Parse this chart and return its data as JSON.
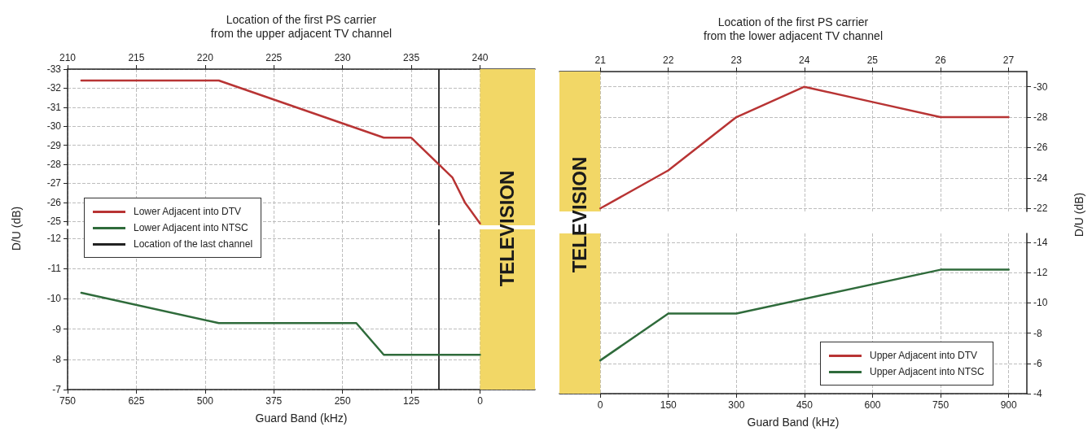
{
  "chart_data": [
    {
      "type": "line",
      "xlabel": "Location of the first PS carrier\nfrom the upper adjacent TV channel",
      "ylabel": "D/U (dB)",
      "xlim": [
        210,
        244
      ],
      "xticks": [
        210,
        215,
        220,
        225,
        230,
        235,
        240
      ],
      "ylim": [
        -24.8,
        -33
      ],
      "yticks": [
        -33,
        -32,
        -31,
        -30,
        -29,
        -28,
        -27,
        -26,
        -25
      ],
      "series": [
        {
          "name": "Lower Adjacent into DTV",
          "color": "#b83434",
          "x": [
            211,
            221,
            233,
            235,
            238,
            238.9,
            240
          ],
          "values": [
            -32.4,
            -32.4,
            -29.4,
            -29.4,
            -27.3,
            -26,
            -24.9
          ]
        }
      ],
      "ref_lines": [
        {
          "axis": "x",
          "value": 237,
          "label": "Location of the last channel",
          "color": "#222222"
        }
      ],
      "bands": [
        {
          "axis": "x",
          "from": 240,
          "to": 244,
          "label": "TELEVISION",
          "color": "#f2d766"
        }
      ],
      "grid": true,
      "legend": "bottom left"
    },
    {
      "type": "line",
      "xlabel": "Guard Band (kHz)",
      "xlim": [
        750,
        -100
      ],
      "xticks": [
        750,
        625,
        500,
        375,
        250,
        125,
        0
      ],
      "ylim": [
        -7,
        -12.3
      ],
      "yticks": [
        -12,
        -11,
        -10,
        -9,
        -8,
        -7
      ],
      "series": [
        {
          "name": "Lower Adjacent into NTSC",
          "color": "#2f6b3b",
          "x": [
            725,
            475,
            225,
            175,
            0
          ],
          "values": [
            -10.2,
            -9.2,
            -9.2,
            -8.15,
            -8.15
          ]
        }
      ],
      "ref_lines": [
        {
          "axis": "x",
          "value": 75,
          "color": "#222222"
        }
      ],
      "bands": [
        {
          "axis": "x",
          "from": 0,
          "to": -100,
          "color": "#f2d766"
        }
      ],
      "grid": true,
      "legend": "top left"
    },
    {
      "type": "line",
      "xlabel": "Location of the first PS carrier\nfrom the lower adjacent TV channel",
      "ylabel": "D/U (dB)",
      "xlim": [
        20.4,
        27.27
      ],
      "xticks": [
        21,
        22,
        23,
        24,
        25,
        26,
        27
      ],
      "ylim": [
        -21.8,
        -31
      ],
      "yticks": [
        -30,
        -28,
        -26,
        -24,
        -22
      ],
      "series": [
        {
          "name": "Upper Adjacent into DTV",
          "color": "#b83434",
          "x": [
            21,
            22,
            23,
            24,
            25,
            26,
            27
          ],
          "values": [
            -22,
            -24.5,
            -28,
            -30,
            -29,
            -28,
            -28
          ]
        }
      ],
      "bands": [
        {
          "axis": "x",
          "from": 20.4,
          "to": 21,
          "label": "TELEVISION",
          "color": "#f2d766"
        }
      ],
      "grid": true,
      "legend": "bottom right"
    },
    {
      "type": "line",
      "xlabel": "Guard Band (kHz)",
      "xlim": [
        -90,
        940
      ],
      "xticks": [
        0,
        150,
        300,
        450,
        600,
        750,
        900
      ],
      "ylim": [
        -4,
        -14.6
      ],
      "yticks": [
        -14,
        -12,
        -10,
        -8,
        -6,
        -4
      ],
      "series": [
        {
          "name": "Upper Adjacent into NTSC",
          "color": "#2f6b3b",
          "x": [
            0,
            150,
            300,
            750,
            900
          ],
          "values": [
            -6.2,
            -9.3,
            -9.3,
            -12.2,
            -12.2
          ]
        }
      ],
      "bands": [
        {
          "axis": "x",
          "from": -90,
          "to": 0,
          "color": "#f2d766"
        }
      ],
      "grid": true,
      "legend": "bottom right"
    }
  ]
}
